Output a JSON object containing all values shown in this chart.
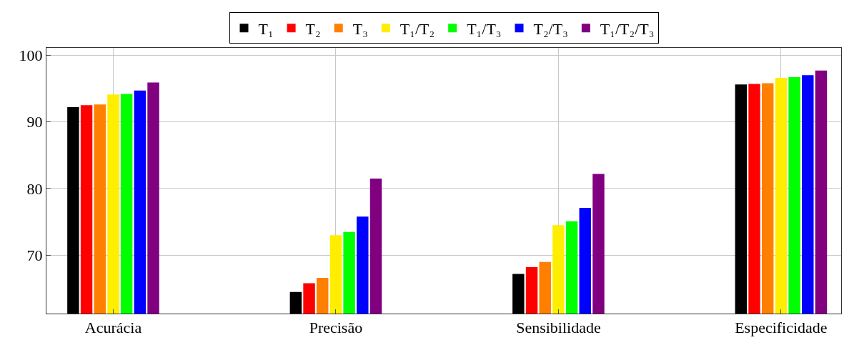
{
  "chart_data": {
    "type": "bar",
    "categories": [
      "Acurácia",
      "Precisão",
      "Sensibilidade",
      "Especificidade"
    ],
    "series": [
      {
        "name": "T₁",
        "color": "#000000",
        "values": [
          92.2,
          64.5,
          67.2,
          95.6
        ]
      },
      {
        "name": "T₂",
        "color": "#ff0000",
        "values": [
          92.5,
          65.8,
          68.2,
          95.7
        ]
      },
      {
        "name": "T₃",
        "color": "#ff8000",
        "values": [
          92.6,
          66.6,
          69.0,
          95.8
        ]
      },
      {
        "name": "T₁/T₂",
        "color": "#ffee00",
        "values": [
          94.1,
          73.0,
          74.5,
          96.6
        ]
      },
      {
        "name": "T₁/T₃",
        "color": "#00ff00",
        "values": [
          94.2,
          73.5,
          75.1,
          96.7
        ]
      },
      {
        "name": "T₂/T₃",
        "color": "#0000ff",
        "values": [
          94.7,
          75.8,
          77.1,
          97.0
        ]
      },
      {
        "name": "T₁/T₂/T₃",
        "color": "#800080",
        "values": [
          95.9,
          81.5,
          82.2,
          97.7
        ]
      }
    ],
    "ylim": [
      61.25,
      101.1
    ],
    "yticks": [
      70,
      80,
      90,
      100
    ],
    "grid": true,
    "legend": "top"
  }
}
